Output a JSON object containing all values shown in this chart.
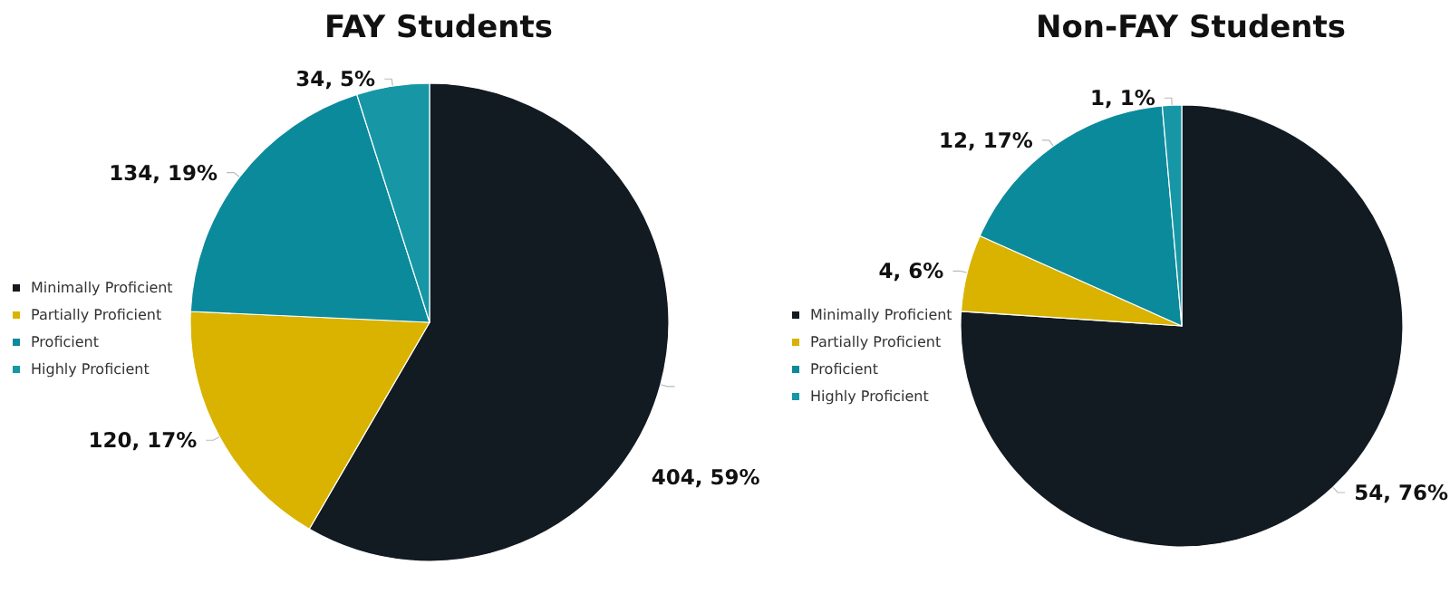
{
  "chart_data": [
    {
      "type": "pie",
      "title": "FAY Students",
      "categories": [
        "Minimally Proficient",
        "Partially Proficient",
        "Proficient",
        "Highly Proficient"
      ],
      "values": [
        404,
        120,
        134,
        34
      ],
      "colors": [
        "#121a22",
        "#d9b300",
        "#0b8a9b",
        "#1797a6"
      ],
      "value_labels": [
        "404, 59%",
        "120, 17%",
        "134, 19%",
        "34, 5%"
      ],
      "legend": "left"
    },
    {
      "type": "pie",
      "title": "Non-FAY Students",
      "categories": [
        "Minimally Proficient",
        "Partially Proficient",
        "Proficient",
        "Highly Proficient"
      ],
      "values": [
        54,
        4,
        12,
        1
      ],
      "colors": [
        "#121a22",
        "#d9b300",
        "#0b8a9b",
        "#1797a6"
      ],
      "value_labels": [
        "54, 76%",
        "4, 6%",
        "12, 17%",
        "1, 1%"
      ],
      "legend": "left"
    }
  ]
}
